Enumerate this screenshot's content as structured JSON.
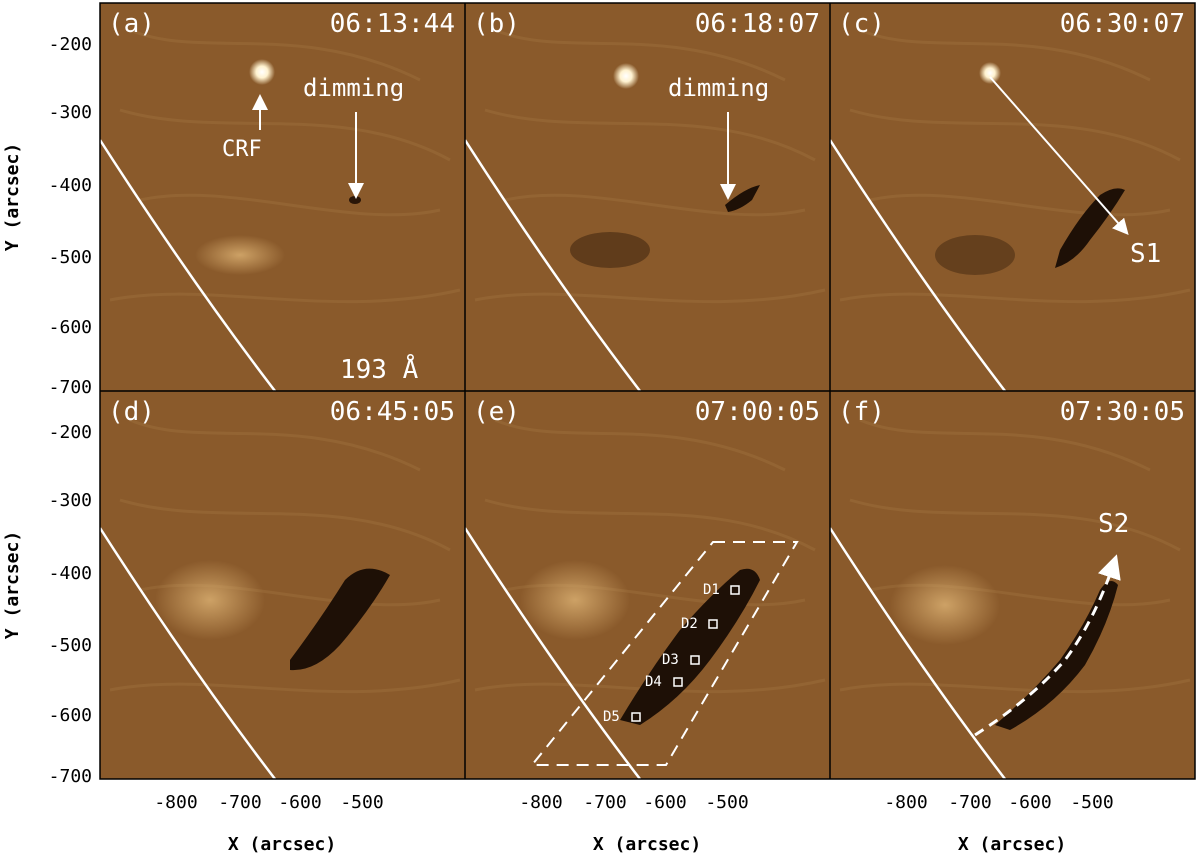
{
  "figure": {
    "wavelength_label": "193 Å",
    "colors": {
      "panel_bg": "#8a5a2b",
      "dark_region": "#1e1006",
      "bright": "#fff4d8",
      "limb": "#ffffff"
    },
    "panels": [
      {
        "id": "a",
        "label": "(a)",
        "time": "06:13:44"
      },
      {
        "id": "b",
        "label": "(b)",
        "time": "06:18:07"
      },
      {
        "id": "c",
        "label": "(c)",
        "time": "06:30:07"
      },
      {
        "id": "d",
        "label": "(d)",
        "time": "06:45:05"
      },
      {
        "id": "e",
        "label": "(e)",
        "time": "07:00:05"
      },
      {
        "id": "f",
        "label": "(f)",
        "time": "07:30:05"
      }
    ],
    "annotations": {
      "crf": "CRF",
      "dimming": "dimming",
      "s1": "S1",
      "s2": "S2",
      "boxes": [
        "D1",
        "D2",
        "D3",
        "D4",
        "D5"
      ]
    },
    "axes": {
      "x_title": "X (arcsec)",
      "y_title": "Y (arcsec)",
      "x_ticks": [
        "-800",
        "-700",
        "-600",
        "-500"
      ],
      "y_ticks": [
        "-200",
        "-300",
        "-400",
        "-500",
        "-600",
        "-700"
      ]
    }
  }
}
